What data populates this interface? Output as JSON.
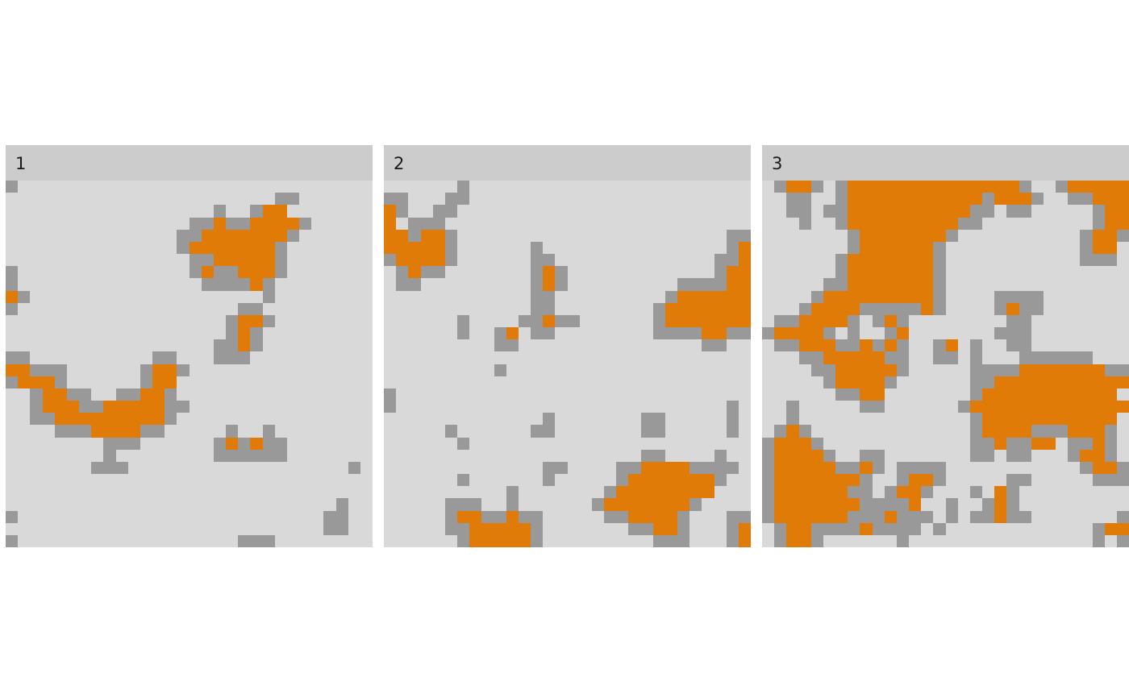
{
  "chart_data": {
    "type": "heatmap",
    "title": "",
    "xlabel": "",
    "ylabel": "",
    "grid": false,
    "legend": "none",
    "grid_cols": 30,
    "grid_rows": 30,
    "state_colors": {
      "0": "#d9d9d9",
      "1": "#999999",
      "2": "#e07b07"
    },
    "panel_strip_color": "#cccccc",
    "panels": [
      {
        "label": "1",
        "rows": [
          "100000000000000000000000000000",
          "000000000000000000000011000000",
          "000000000000000001001220000000",
          "000000000000000112112222100000",
          "000000000000001122222221000000",
          "000000000000001222222210000000",
          "000000000000000112222210000000",
          "100000000000000121122210000000",
          "100000000000000011112100000000",
          "210000000000000000000100000000",
          "100000000000000000011000000000",
          "000000000000000000122100000000",
          "000000000000000000121000000000",
          "000000000000000001121000000000",
          "110000000000110001110000000000",
          "221110000001221000000000000000",
          "122210000001220000000000000000",
          "001221100112210000000000000000",
          "001222112222211000000000000000",
          "001122222222210000000000000000",
          "000011122221100000100100000000",
          "000000001110000001212110000000",
          "000000001000000001111110000000",
          "000000011100000000000000000010",
          "000000000000000000000000000000",
          "000000000000000000000000000000",
          "000000000000000000000000000100",
          "100000000000000000000000001100",
          "000000000000000000000000001100",
          "100000000000000000011100000000"
        ]
      },
      {
        "label": "2",
        "rows": [
          "000000100000000000000000000000",
          "110001100000000000000000000000",
          "210011000000000000000000000000",
          "201110000000000000000000000000",
          "221221000000000000000000000011",
          "222221000000100000000000000012",
          "122221000000110000000000000112",
          "012110000000121000000000000122",
          "011000000000121000000000111122",
          "000000000000110000000001222222",
          "000000000000110000000012222222",
          "000000100001121100000012222222",
          "000000100120110000000011112211",
          "000000000110000000000000001100",
          "000000000000000000000000000000",
          "000000000100000000000000000000",
          "000000000000000000000000000000",
          "100000000000000000000000000000",
          "100000000000000000000000000010",
          "000000000000010000000110000010",
          "000001000000110000000110000010",
          "000000100000000000000000000000",
          "000000000000000000000110000100",
          "000000000000011000011222211110",
          "000000100000010000012222222100",
          "000000000010000000122222222000",
          "000001110010000001222222210000",
          "000001221121100000112222100011",
          "000001122222100000001122100012",
          "000000122222100000000011100012"
        ]
      },
      {
        "label": "3",
        "rows": [
          "012210122222222222222100122222",
          "001100122222222222122210011222",
          "001101122222222221101100000122",
          "000100122222222211000000000122",
          "000000012222222100000000001221",
          "000000012222221000000000001220",
          "000000122222221000000000001110",
          "000000122222221000000000000000",
          "000001122222221000000000000000",
          "000012222222221000011110000000",
          "000122221111121000012110000000",
          "011222210121000000001100000000",
          "122221010012000000011100000000",
          "011222112121001201001100000000",
          "000112222211001101000111111000",
          "000011222221000001111222222211",
          "000001222210000001122222222222",
          "000000112200000001222222222220",
          "001000001100000012222222222222",
          "001000000000000001222222222220",
          "012100000000000001222211122210",
          "122210000000000001121122011210",
          "122221001100000001101100012210",
          "122222112101111000000000001221",
          "122222221001221000001100000111",
          "122222211012210001021000000000",
          "122222221111200100121000000000",
          "122222211121110101121100000001",
          "012211112111101000000000000122",
          "012210000001000000000000000101"
        ]
      }
    ]
  }
}
